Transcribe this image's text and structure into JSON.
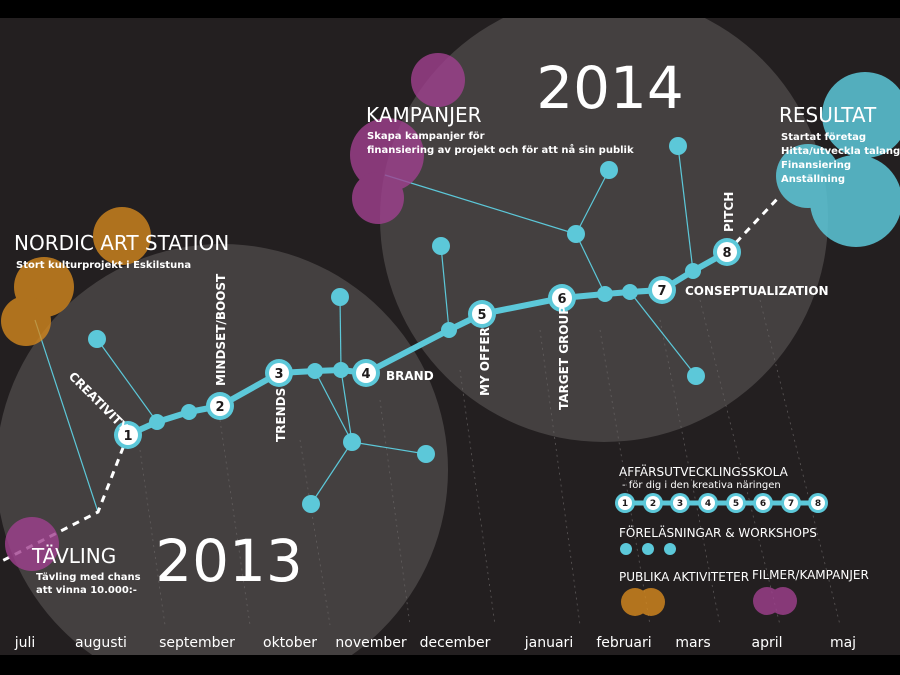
{
  "years": {
    "y2013": "2013",
    "y2014": "2014"
  },
  "nordic": {
    "title": "NORDIC ART STATION",
    "subtitle": "Stort kulturprojekt i Eskilstuna"
  },
  "kampanjer": {
    "title": "KAMPANJER",
    "line1": "Skapa kampanjer för",
    "line2": "finansiering av projekt och för att nå sin publik"
  },
  "resultat": {
    "title": "RESULTAT",
    "items": [
      "Startat företag",
      "Hitta/utveckla talang",
      "Finansiering",
      "Anställning"
    ]
  },
  "tavling": {
    "title": "TÄVLING",
    "line1": "Tävling med chans",
    "line2": "att vinna 10.000:-"
  },
  "steps": [
    {
      "number": "1",
      "label": "CREATIVITY"
    },
    {
      "number": "2",
      "label": "MINDSET/BOOST"
    },
    {
      "number": "3",
      "label": "TRENDS"
    },
    {
      "number": "4",
      "label": "BRAND"
    },
    {
      "number": "5",
      "label": "MY OFFER"
    },
    {
      "number": "6",
      "label": "TARGET GROUP"
    },
    {
      "number": "7",
      "label": "CONSEPTUALIZATION"
    },
    {
      "number": "8",
      "label": "PITCH"
    }
  ],
  "legend": {
    "school_title": "AFFÄRSUTVECKLINGSSKOLA",
    "school_sub": "- för dig i den kreativa näringen",
    "school_numbers": [
      "1",
      "2",
      "3",
      "4",
      "5",
      "6",
      "7",
      "8"
    ],
    "workshops": "FÖRELÄSNINGAR & WORKSHOPS",
    "public": "PUBLIKA AKTIVITETER",
    "films": "FILMER/KAMPANJER"
  },
  "months": [
    "juli",
    "augusti",
    "september",
    "oktober",
    "november",
    "december",
    "januari",
    "februari",
    "mars",
    "april",
    "maj"
  ],
  "colors": {
    "background": "#000000",
    "panel": "#231f20",
    "circle": "#4a4646",
    "cyan": "#5cc8d9",
    "orange": "#d78a1e",
    "magenta": "#a0408f",
    "white": "#ffffff"
  }
}
